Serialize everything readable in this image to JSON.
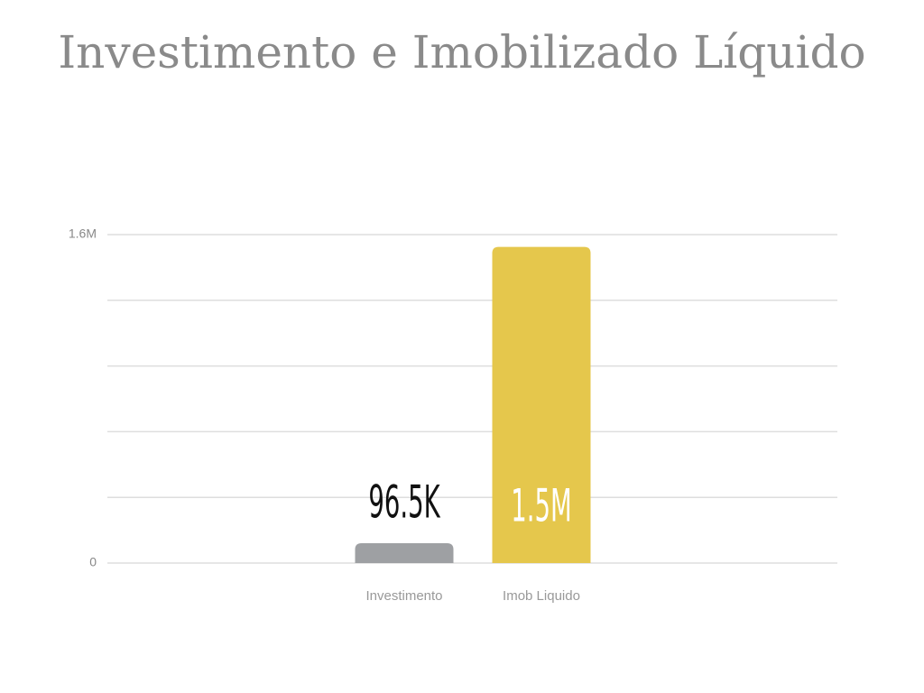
{
  "chart_data": {
    "type": "bar",
    "title": "Investimento e Imobilizado Líquido",
    "categories": [
      "Investimento",
      "Imob Liquido"
    ],
    "values": [
      96500,
      1540000
    ],
    "value_labels": [
      "96.5K",
      "1.5M"
    ],
    "colors": [
      "#9ea0a3",
      "#e5c74c"
    ],
    "ylim": [
      0,
      1600000
    ],
    "yticks": [
      {
        "value": 0,
        "label": "0"
      },
      {
        "value": 320000,
        "label": null
      },
      {
        "value": 640000,
        "label": null
      },
      {
        "value": 960000,
        "label": null
      },
      {
        "value": 1280000,
        "label": null
      },
      {
        "value": 1600000,
        "label": "1.6M"
      }
    ],
    "grid": true
  }
}
